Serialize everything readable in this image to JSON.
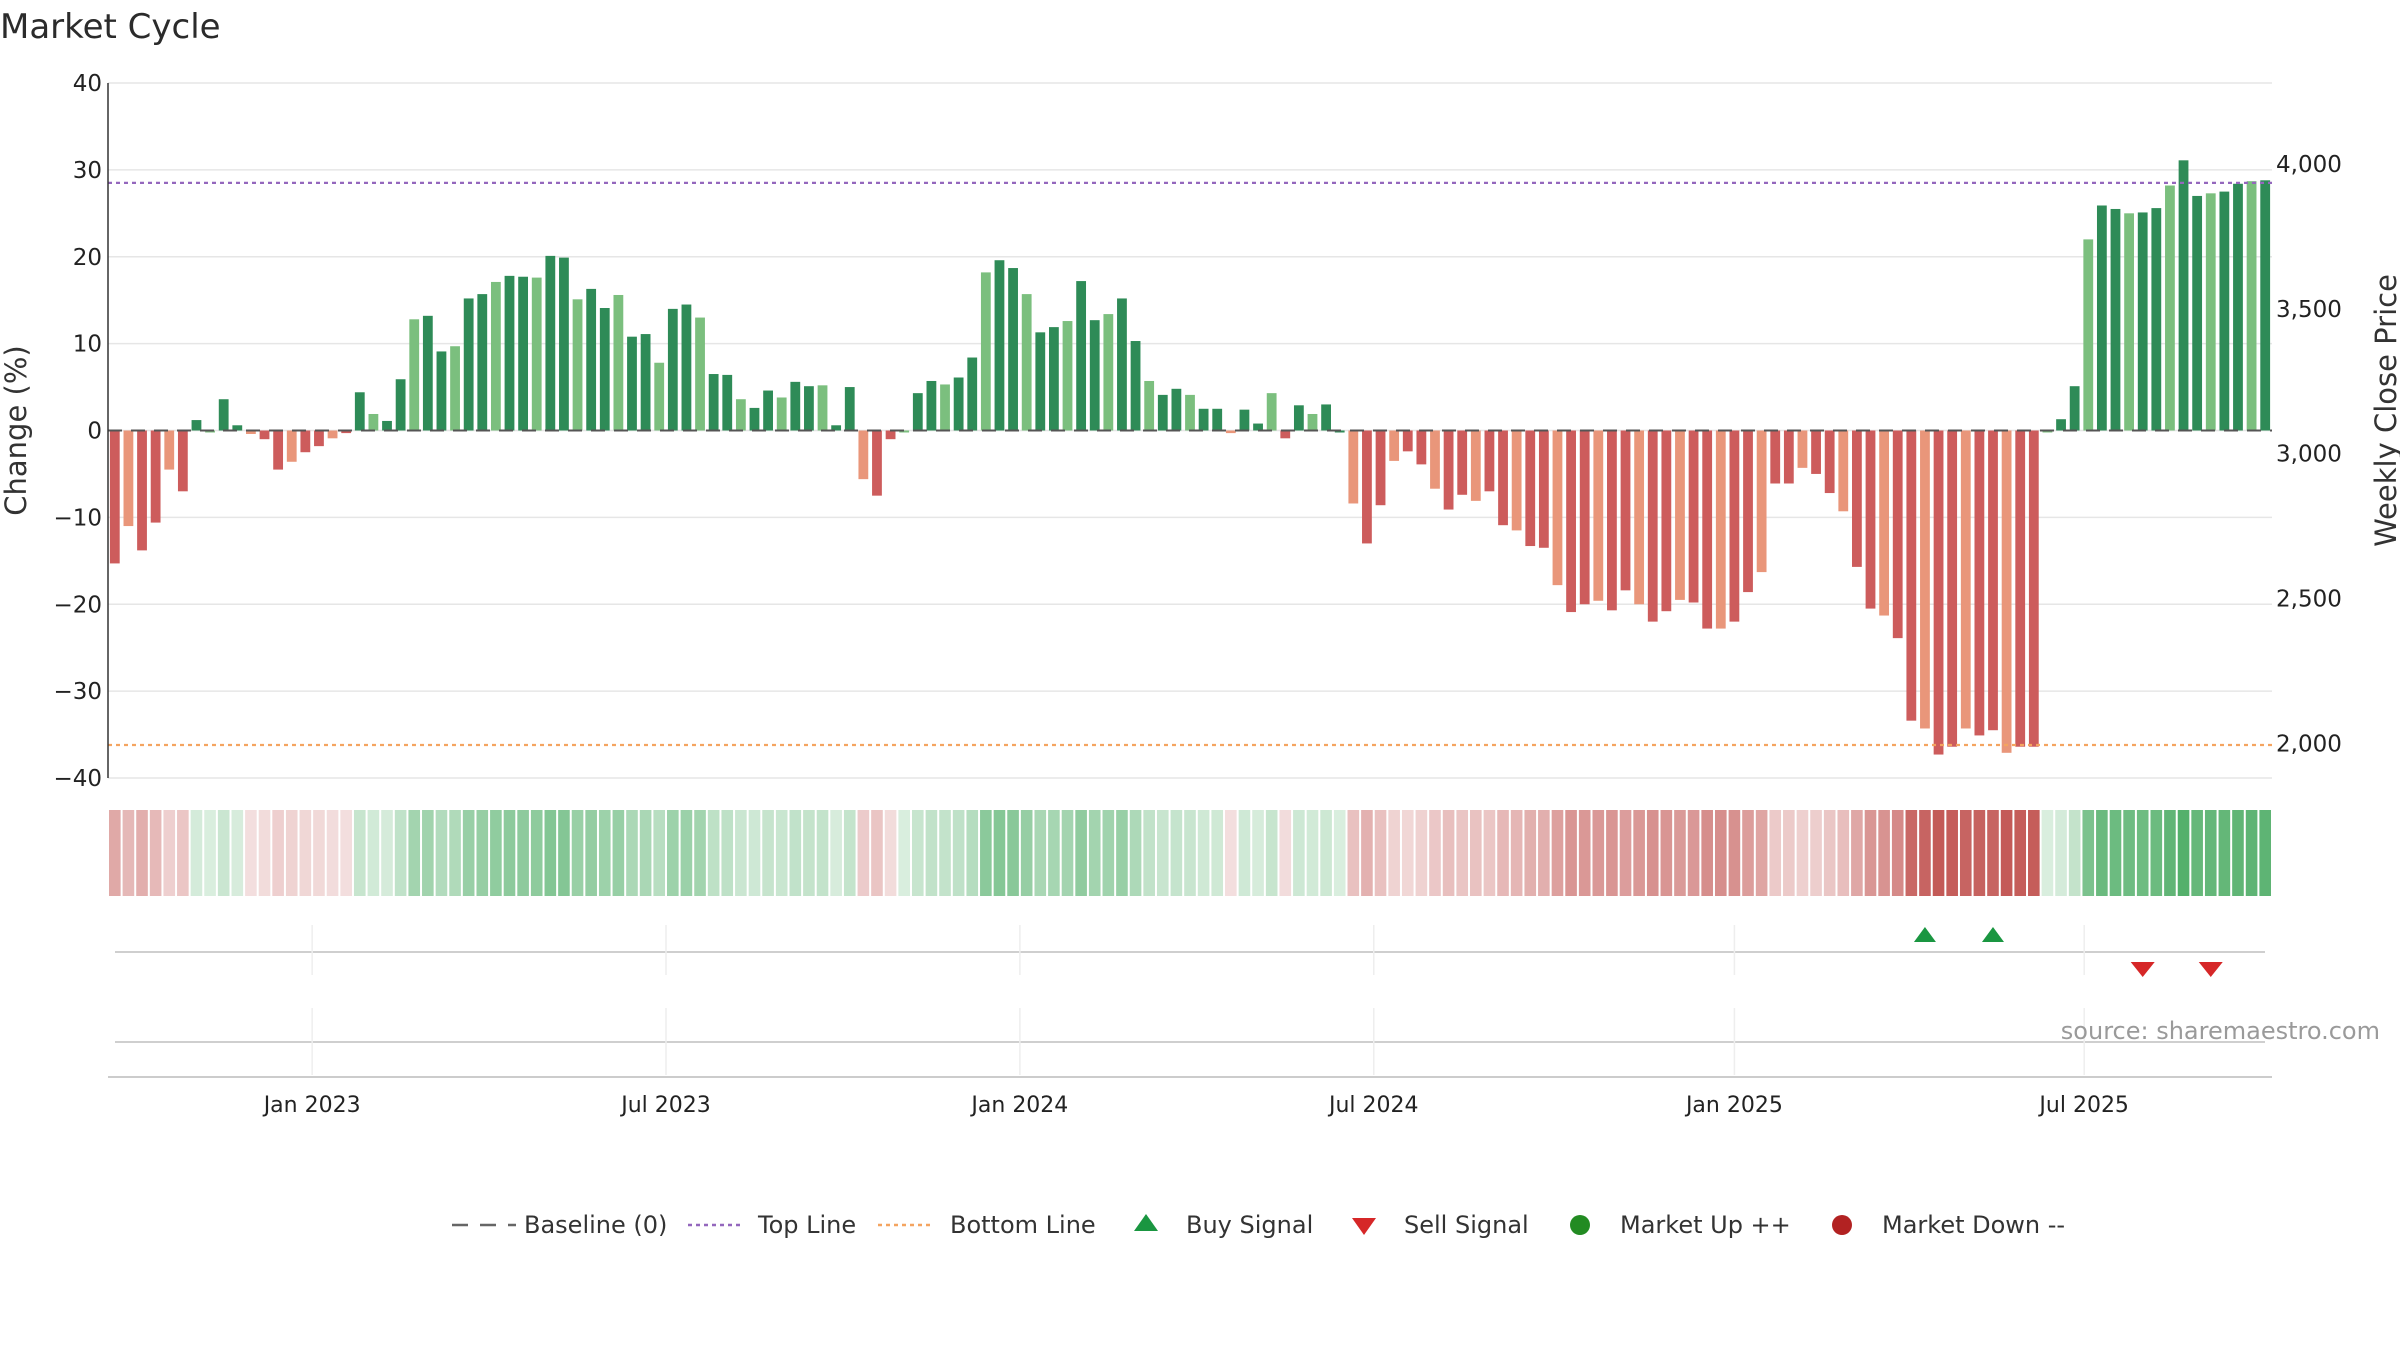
{
  "chart_data": {
    "type": "bar",
    "title": "Market Cycle",
    "ylabel": "Change (%)",
    "y2label": "Weekly Close Price",
    "ylim": [
      -40,
      40
    ],
    "y2lim": [
      1880,
      4280
    ],
    "yticks": [
      "40",
      "30",
      "20",
      "10",
      "0",
      "−10",
      "−20",
      "−30",
      "−40"
    ],
    "y2ticks": [
      "4,000",
      "3,500",
      "3,000",
      "2,500",
      "2,000"
    ],
    "y2tick_values": [
      4000,
      3500,
      3000,
      2500,
      2000
    ],
    "xticks": [
      "Jan 2023",
      "Jul 2023",
      "Jan 2024",
      "Jul 2024",
      "Jan 2025",
      "Jul 2025"
    ],
    "xtick_weeks": [
      14.5,
      40.5,
      66.5,
      92.5,
      119,
      144.7
    ],
    "top_line": 28.5,
    "bottom_line": -36.2,
    "grid": true,
    "values": [
      -15.3,
      -11,
      -13.8,
      -10.6,
      -4.5,
      -7,
      1.2,
      0,
      3.6,
      0.6,
      -0.4,
      -1,
      -4.5,
      -3.6,
      -2.5,
      -1.8,
      -0.9,
      -0.3,
      4.4,
      1.9,
      1.1,
      5.9,
      12.8,
      13.2,
      9.1,
      9.7,
      15.2,
      15.7,
      17.1,
      17.8,
      17.7,
      17.6,
      20.1,
      19.9,
      15.1,
      16.3,
      14.1,
      15.6,
      10.8,
      11.1,
      7.8,
      14,
      14.5,
      13,
      6.5,
      6.4,
      3.6,
      2.6,
      4.6,
      3.8,
      5.6,
      5.1,
      5.2,
      0.6,
      5,
      -5.6,
      -7.5,
      -1,
      0,
      4.3,
      5.7,
      5.3,
      6.1,
      8.4,
      18.2,
      19.6,
      18.7,
      15.7,
      11.3,
      11.9,
      12.6,
      17.2,
      12.7,
      13.4,
      15.2,
      10.3,
      5.7,
      4.1,
      4.8,
      4.1,
      2.5,
      2.5,
      -0.3,
      2.4,
      0.8,
      4.3,
      -0.9,
      2.9,
      1.9,
      3,
      0,
      -8.4,
      -13,
      -8.6,
      -3.5,
      -2.4,
      -3.9,
      -6.7,
      -9.1,
      -7.4,
      -8.1,
      -7,
      -10.9,
      -11.5,
      -13.3,
      -13.5,
      -17.8,
      -20.9,
      -20,
      -19.6,
      -20.7,
      -18.4,
      -20,
      -22,
      -20.8,
      -19.5,
      -19.8,
      -22.8,
      -22.8,
      -22,
      -18.6,
      -16.3,
      -6.1,
      -6.1,
      -4.3,
      -5,
      -7.2,
      -9.3,
      -15.7,
      -20.5,
      -21.3,
      -23.9,
      -33.4,
      -34.3,
      -37.3,
      -36.4,
      -34.3,
      -35.1,
      -34.5,
      -37.1,
      -36.4,
      -36.4,
      0,
      1.3,
      5.1,
      22,
      25.9,
      25.5,
      25,
      25.1,
      25.6,
      28.2,
      31.1,
      27,
      27.3,
      27.5,
      28.4,
      28.7,
      28.8
    ],
    "up_colors": [
      "#2e8b57",
      "#7bbf7e"
    ],
    "down_colors": [
      "#cd5c5c",
      "#e9967a"
    ],
    "signals": {
      "buy": [
        133,
        138
      ],
      "sell": [
        149,
        154
      ]
    },
    "series": [
      {
        "name": "Baseline (0)",
        "color": "#666666"
      },
      {
        "name": "Top Line",
        "color": "#9467bd"
      },
      {
        "name": "Bottom Line",
        "color": "#f4a460"
      },
      {
        "name": "Buy Signal",
        "color": "#1a9641"
      },
      {
        "name": "Sell Signal",
        "color": "#d62728"
      },
      {
        "name": "Market Up ++",
        "color": "#228b22"
      },
      {
        "name": "Market Down --",
        "color": "#b22222"
      }
    ],
    "source": "source: sharemaestro.com"
  }
}
